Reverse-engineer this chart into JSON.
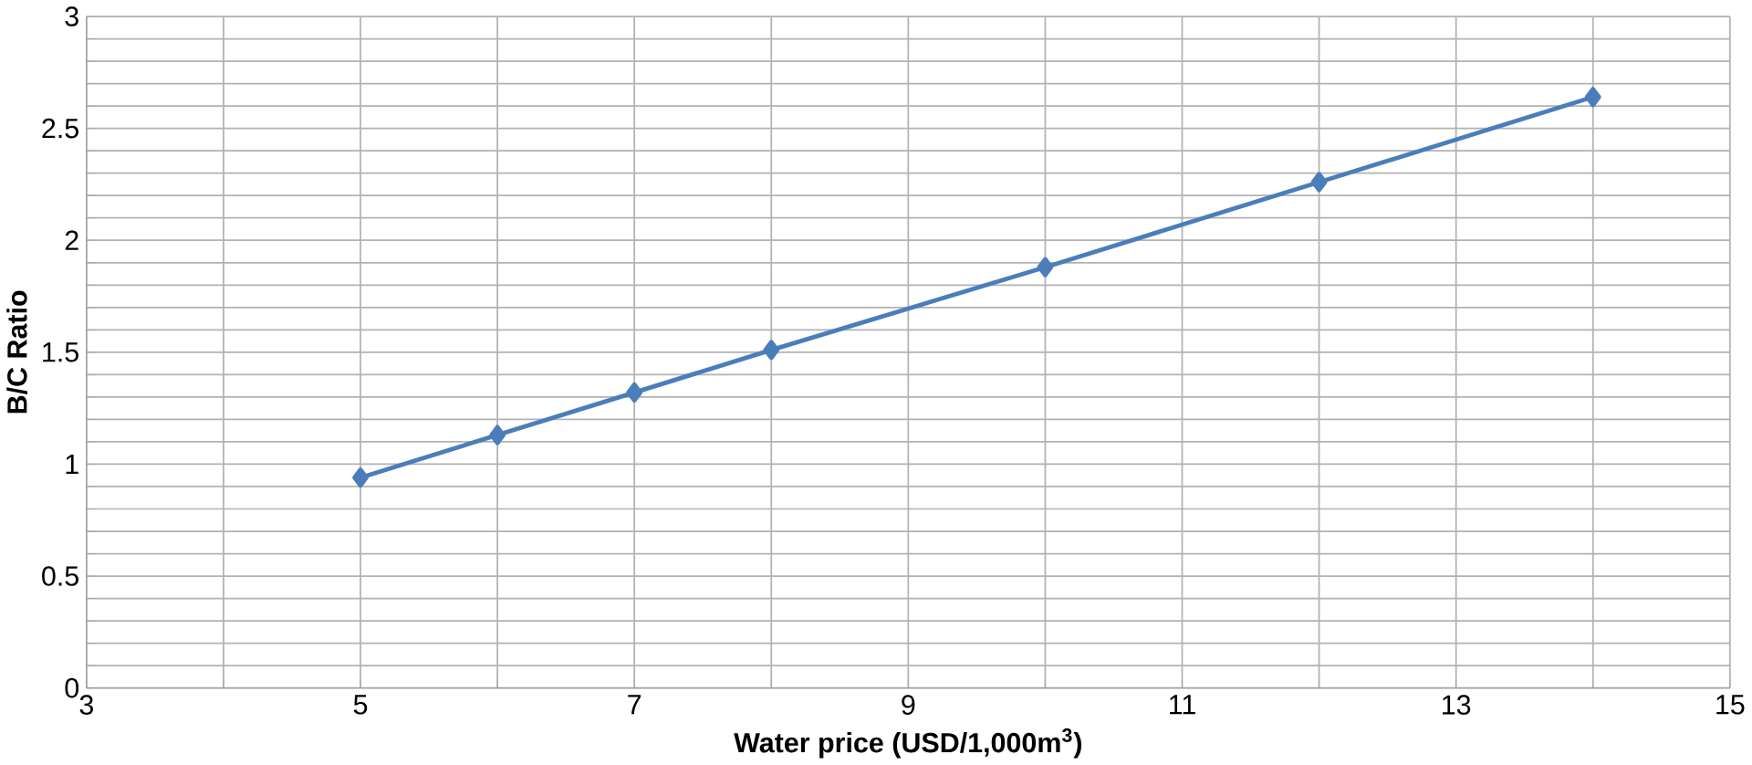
{
  "chart_data": {
    "type": "line",
    "xlabel": "Water price (USD/1,000m$^{3}$)",
    "ylabel": "B/C Ratio",
    "x": [
      5,
      6,
      7,
      8,
      10,
      12,
      14
    ],
    "series": [
      {
        "color": "#4a7ebb",
        "values": [
          0.94,
          1.13,
          1.32,
          1.51,
          1.88,
          2.26,
          2.64
        ]
      }
    ],
    "xlim": [
      3,
      15
    ],
    "ylim": [
      0,
      3
    ],
    "xticks": [
      3,
      {
        "value": 4,
        "label": null
      },
      5,
      {
        "value": 6,
        "label": null
      },
      7,
      {
        "value": 8,
        "label": null
      },
      9,
      {
        "value": 10,
        "label": null
      },
      11,
      {
        "value": 12,
        "label": null
      },
      13,
      {
        "value": 14,
        "label": null
      },
      15
    ],
    "yticks": [
      0,
      {
        "value": 0.1,
        "label": null
      },
      {
        "value": 0.2,
        "label": null
      },
      {
        "value": 0.3,
        "label": null
      },
      {
        "value": 0.4,
        "label": null
      },
      0.5,
      {
        "value": 0.6,
        "label": null
      },
      {
        "value": 0.7,
        "label": null
      },
      {
        "value": 0.8,
        "label": null
      },
      {
        "value": 0.9,
        "label": null
      },
      1,
      {
        "value": 1.1,
        "label": null
      },
      {
        "value": 1.2,
        "label": null
      },
      {
        "value": 1.3,
        "label": null
      },
      {
        "value": 1.4,
        "label": null
      },
      1.5,
      {
        "value": 1.6,
        "label": null
      },
      {
        "value": 1.7,
        "label": null
      },
      {
        "value": 1.8,
        "label": null
      },
      {
        "value": 1.9,
        "label": null
      },
      2,
      {
        "value": 2.1,
        "label": null
      },
      {
        "value": 2.2,
        "label": null
      },
      {
        "value": 2.3,
        "label": null
      },
      {
        "value": 2.4,
        "label": null
      },
      2.5,
      {
        "value": 2.6,
        "label": null
      },
      {
        "value": 2.7,
        "label": null
      },
      {
        "value": 2.8,
        "label": null
      },
      {
        "value": 2.9,
        "label": null
      },
      3
    ],
    "grid": true,
    "marker": "diamond",
    "line_style": "solid"
  }
}
